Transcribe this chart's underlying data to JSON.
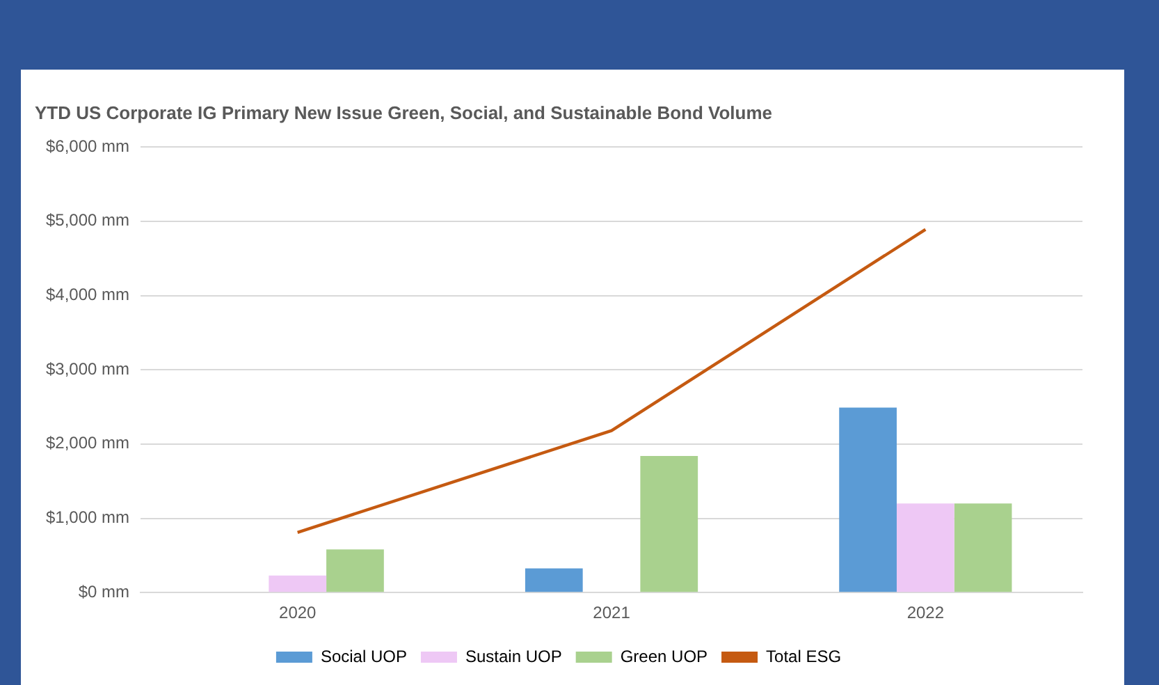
{
  "chart_data": {
    "type": "bar",
    "title": "YTD US Corporate IG Primary New Issue Green, Social, and Sustainable Bond Volume",
    "categories": [
      "2020",
      "2021",
      "2022"
    ],
    "series": [
      {
        "name": "Social UOP",
        "color": "#5b9bd5",
        "values": [
          0,
          325,
          2490
        ]
      },
      {
        "name": "Sustain UOP",
        "color": "#eec8f5",
        "values": [
          230,
          0,
          1200
        ]
      },
      {
        "name": "Green UOP",
        "color": "#a9d18e",
        "values": [
          580,
          1840,
          1200
        ]
      },
      {
        "name": "Total ESG",
        "type": "line",
        "color": "#c55a11",
        "values": [
          810,
          2180,
          4890
        ]
      }
    ],
    "ylim": [
      0,
      6000
    ],
    "yticks": [
      {
        "value": 0,
        "label": "$0 mm"
      },
      {
        "value": 1000,
        "label": "$1,000 mm"
      },
      {
        "value": 2000,
        "label": "$2,000 mm"
      },
      {
        "value": 3000,
        "label": "$3,000 mm"
      },
      {
        "value": 4000,
        "label": "$4,000 mm"
      },
      {
        "value": 5000,
        "label": "$5,000 mm"
      },
      {
        "value": 6000,
        "label": "$6,000 mm"
      }
    ],
    "grid": "y",
    "legend": "bottom",
    "marker": "none"
  }
}
